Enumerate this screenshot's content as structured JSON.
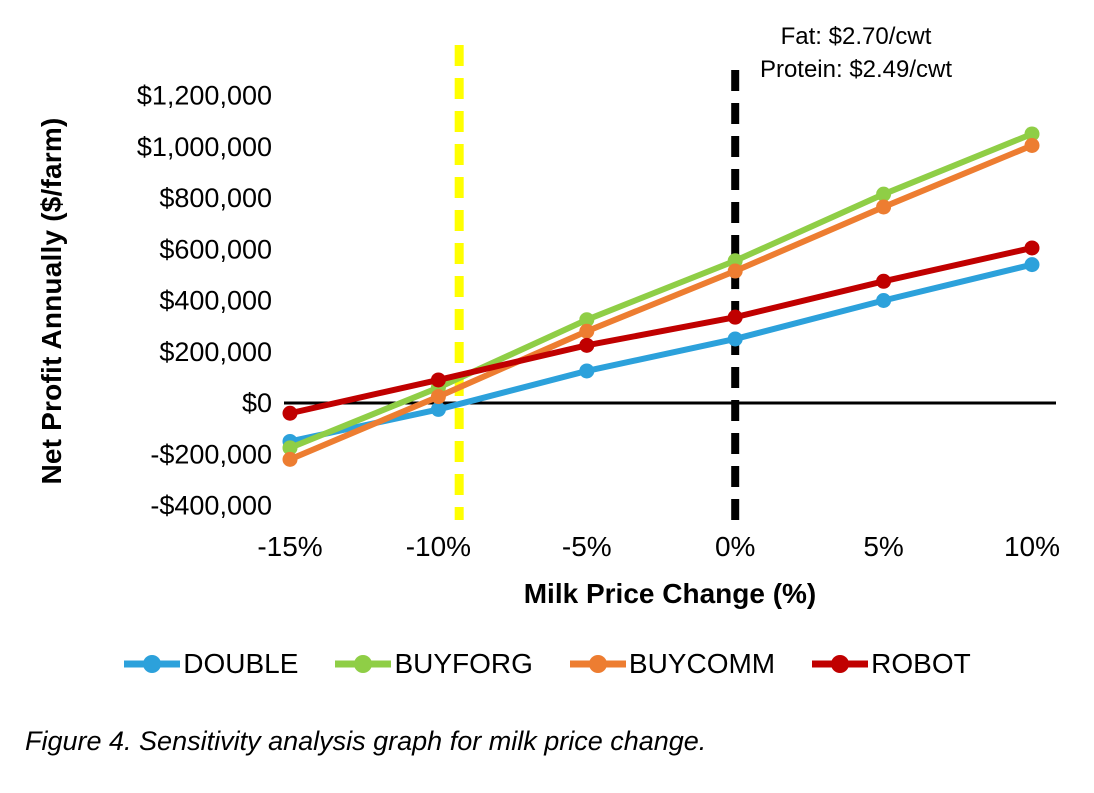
{
  "caption": "Figure 4. Sensitivity analysis graph for milk price change.",
  "annotation": {
    "line1": "Fat: $2.70/cwt",
    "line2": "Protein: $2.49/cwt"
  },
  "chart_data": {
    "type": "line",
    "title": "",
    "xlabel": "Milk Price Change (%)",
    "ylabel": "Net Profit Annually ($/farm)",
    "categories": [
      "-15%",
      "-10%",
      "-5%",
      "0%",
      "5%",
      "10%"
    ],
    "x_values": [
      -15,
      -10,
      -5,
      0,
      5,
      10
    ],
    "x_range": [
      -15,
      10
    ],
    "ylim": [
      -400000,
      1200000
    ],
    "y_tick_values": [
      1200000,
      1000000,
      800000,
      600000,
      400000,
      200000,
      0,
      -200000,
      -400000
    ],
    "y_tick_labels": [
      "$1,200,000",
      "$1,000,000",
      "$800,000",
      "$600,000",
      "$400,000",
      "$200,000",
      "$0",
      "-$200,000",
      "-$400,000"
    ],
    "grid": false,
    "zero_line": true,
    "legend_position": "bottom",
    "series": [
      {
        "name": "DOUBLE",
        "color": "#2CA1DB",
        "values": [
          -150000,
          -25000,
          125000,
          250000,
          400000,
          540000
        ]
      },
      {
        "name": "BUYFORG",
        "color": "#8FCE46",
        "values": [
          -175000,
          60000,
          325000,
          555000,
          815000,
          1050000
        ]
      },
      {
        "name": "BUYCOMM",
        "color": "#ED7D31",
        "values": [
          -220000,
          25000,
          280000,
          515000,
          765000,
          1005000
        ]
      },
      {
        "name": "ROBOT",
        "color": "#C00000",
        "values": [
          -40000,
          90000,
          225000,
          335000,
          475000,
          605000
        ]
      }
    ],
    "reference_lines": [
      {
        "name": "breakeven-price-line",
        "x_value": -9.3,
        "color": "#FFFF00",
        "style": "dashed"
      },
      {
        "name": "base-price-line",
        "x_value": 0,
        "color": "#000000",
        "style": "dashed"
      }
    ]
  }
}
